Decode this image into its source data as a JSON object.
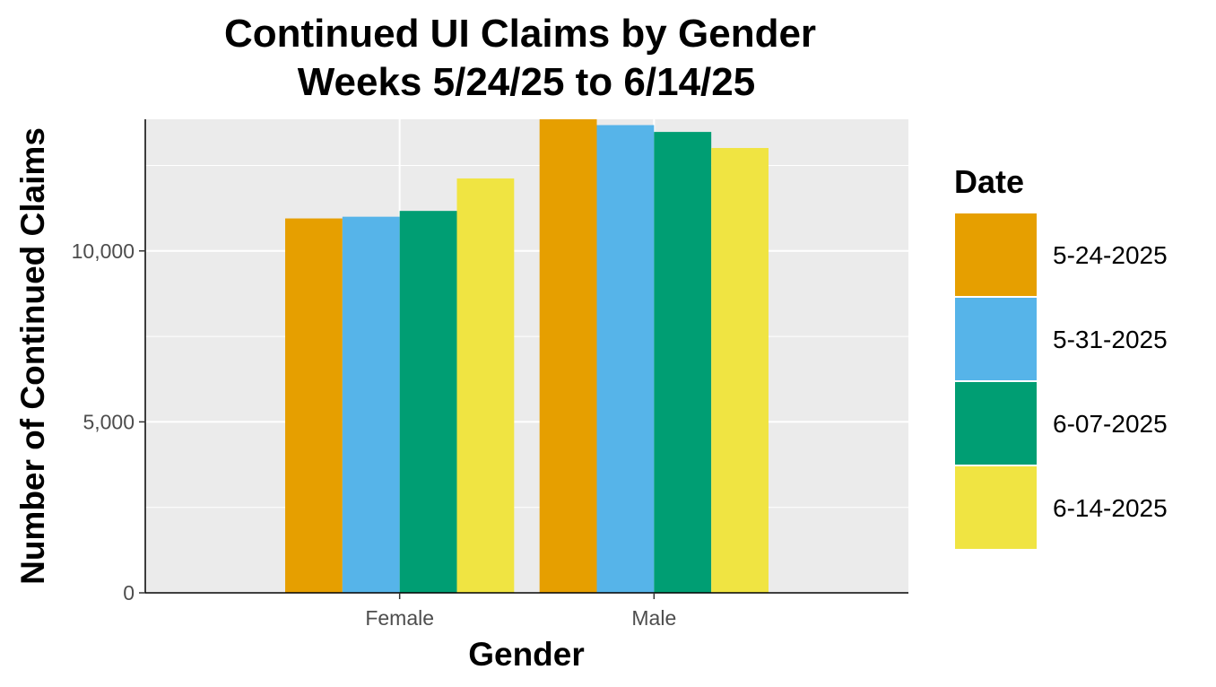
{
  "chart_data": {
    "type": "bar",
    "title": [
      "Continued UI Claims by Gender",
      "Weeks  5/24/25 to 6/14/25"
    ],
    "xlabel": "Gender",
    "ylabel": "Number of Continued Claims",
    "categories": [
      "Female",
      "Male"
    ],
    "series": [
      {
        "name": "5-24-2025",
        "color": "#E69F00",
        "values": [
          10950,
          13850
        ]
      },
      {
        "name": "5-31-2025",
        "color": "#56B4E9",
        "values": [
          11000,
          13680
        ]
      },
      {
        "name": "6-07-2025",
        "color": "#009E73",
        "values": [
          11170,
          13480
        ]
      },
      {
        "name": "6-14-2025",
        "color": "#F0E442",
        "values": [
          12120,
          13010
        ]
      }
    ],
    "ylim": [
      0,
      13850
    ],
    "yticks": [
      0,
      5000,
      10000
    ],
    "ytick_labels": [
      "0",
      "5,000",
      "10,000"
    ],
    "grid": true,
    "legend_title": "Date",
    "legend_position": "right"
  }
}
